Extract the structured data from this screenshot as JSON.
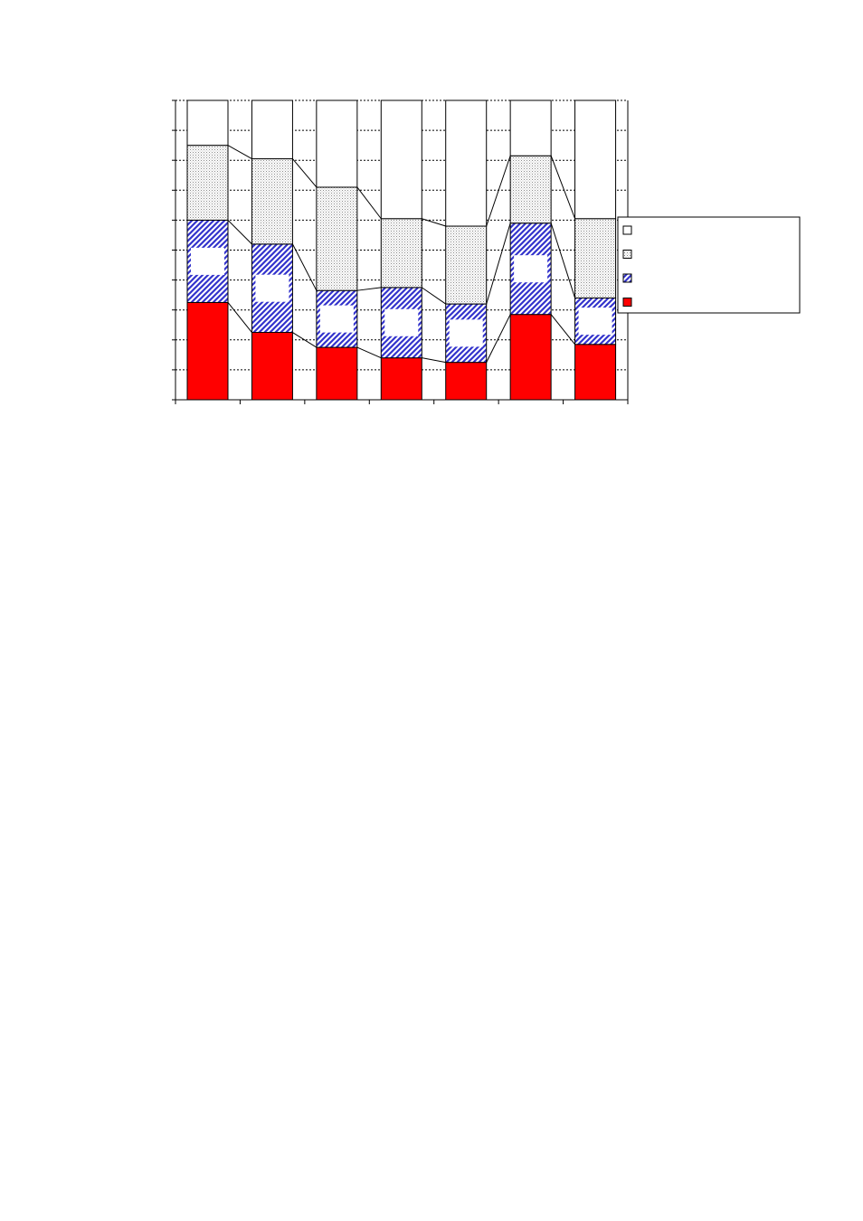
{
  "chart_data": {
    "type": "bar",
    "stacked": true,
    "normalized": true,
    "categories": [
      "",
      "",
      "",
      "",
      "",
      "",
      ""
    ],
    "series": [
      {
        "values": [
          32.5,
          22.5,
          17.5,
          14.0,
          12.5,
          28.5,
          18.5
        ],
        "color": "#ff0000",
        "pattern": "solid"
      },
      {
        "values": [
          27.5,
          29.5,
          19.0,
          23.5,
          19.5,
          30.5,
          15.5
        ],
        "color": "#3333cc",
        "pattern": "diagonal-hatch"
      },
      {
        "values": [
          25.0,
          28.5,
          34.5,
          23.0,
          26.0,
          22.5,
          26.5
        ],
        "color": "#999999",
        "pattern": "dotted"
      },
      {
        "values": [
          15.0,
          19.5,
          29.0,
          39.5,
          42.0,
          18.5,
          39.5
        ],
        "color": "#ffffff",
        "pattern": "empty"
      }
    ],
    "ylim": [
      0,
      100
    ],
    "y_gridlines": 10,
    "grid": true,
    "grid_style": "dotted",
    "connector_lines": true,
    "legend": {
      "position": "right",
      "entries": [
        "",
        "",
        "",
        ""
      ]
    },
    "title": "",
    "xlabel": "",
    "ylabel": ""
  }
}
